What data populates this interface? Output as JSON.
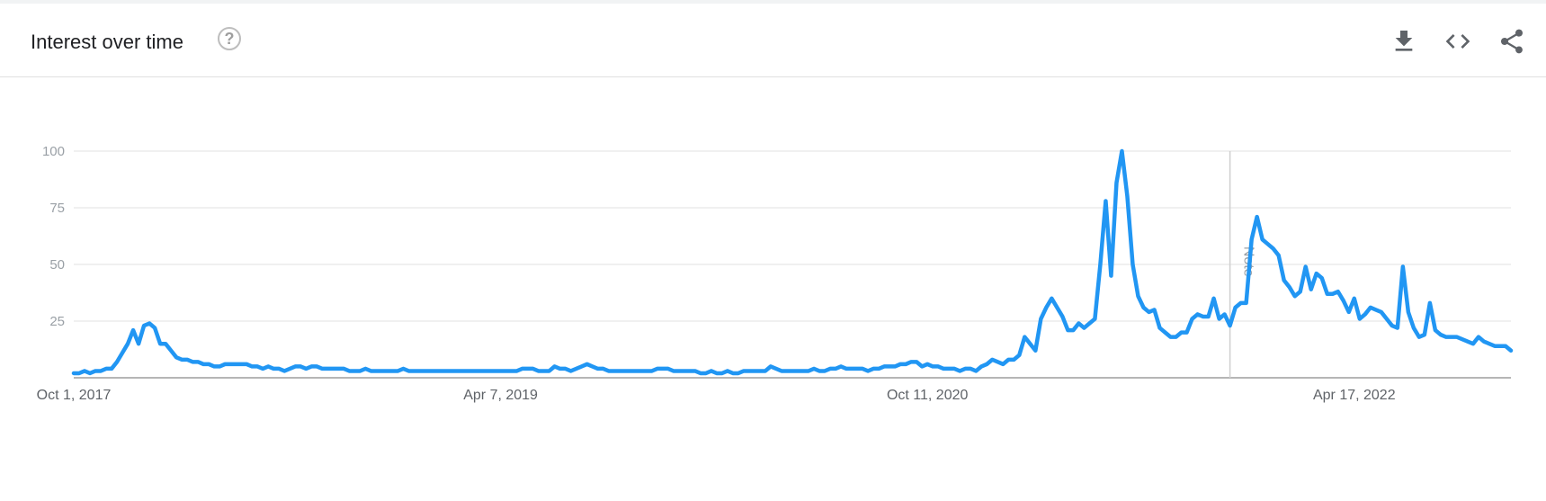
{
  "header": {
    "title": "Interest over time",
    "help_icon": "question-circle-icon",
    "download_icon": "download-icon",
    "embed_icon": "code-icon",
    "share_icon": "share-icon"
  },
  "colors": {
    "series": "#2196f3",
    "grid": "#e0e0e0",
    "axis": "#9e9e9e"
  },
  "chart_data": {
    "type": "line",
    "title": "",
    "xlabel": "",
    "ylabel": "",
    "ylim": [
      0,
      100
    ],
    "yticks": [
      25,
      50,
      75,
      100
    ],
    "xtick_labels": [
      "Oct 1, 2017",
      "Apr 7, 2019",
      "Oct 11, 2020",
      "Apr 17, 2022"
    ],
    "annotation": {
      "label": "Note",
      "x": 214
    },
    "grid": true,
    "series": [
      {
        "values": [
          2,
          2,
          3,
          2,
          3,
          3,
          4,
          4,
          7,
          11,
          15,
          21,
          15,
          23,
          24,
          22,
          15,
          15,
          12,
          9,
          8,
          8,
          7,
          7,
          6,
          6,
          5,
          5,
          6,
          6,
          6,
          6,
          6,
          5,
          5,
          4,
          5,
          4,
          4,
          3,
          4,
          5,
          5,
          4,
          5,
          5,
          4,
          4,
          4,
          4,
          4,
          3,
          3,
          3,
          4,
          3,
          3,
          3,
          3,
          3,
          3,
          4,
          3,
          3,
          3,
          3,
          3,
          3,
          3,
          3,
          3,
          3,
          3,
          3,
          3,
          3,
          3,
          3,
          3,
          3,
          3,
          3,
          3,
          4,
          4,
          4,
          3,
          3,
          3,
          5,
          4,
          4,
          3,
          4,
          5,
          6,
          5,
          4,
          4,
          3,
          3,
          3,
          3,
          3,
          3,
          3,
          3,
          3,
          4,
          4,
          4,
          3,
          3,
          3,
          3,
          3,
          2,
          2,
          3,
          2,
          2,
          3,
          2,
          2,
          3,
          3,
          3,
          3,
          3,
          5,
          4,
          3,
          3,
          3,
          3,
          3,
          3,
          4,
          3,
          3,
          4,
          4,
          5,
          4,
          4,
          4,
          4,
          3,
          4,
          4,
          5,
          5,
          5,
          6,
          6,
          7,
          7,
          5,
          6,
          5,
          5,
          4,
          4,
          4,
          3,
          4,
          4,
          3,
          5,
          6,
          8,
          7,
          6,
          8,
          8,
          10,
          18,
          15,
          12,
          26,
          31,
          35,
          31,
          27,
          21,
          21,
          24,
          22,
          24,
          26,
          50,
          78,
          45,
          86,
          100,
          80,
          50,
          36,
          31,
          29,
          30,
          22,
          20,
          18,
          18,
          20,
          20,
          26,
          28,
          27,
          27,
          35,
          26,
          28,
          23,
          31,
          33,
          33,
          61,
          71,
          61,
          59,
          57,
          54,
          43,
          40,
          36,
          38,
          49,
          39,
          46,
          44,
          37,
          37,
          38,
          34,
          29,
          35,
          26,
          28,
          31,
          30,
          29,
          26,
          23,
          22,
          49,
          29,
          22,
          18,
          19,
          33,
          21,
          19,
          18,
          18,
          18,
          17,
          16,
          15,
          18,
          16,
          15,
          14,
          14,
          14,
          12
        ]
      }
    ]
  }
}
